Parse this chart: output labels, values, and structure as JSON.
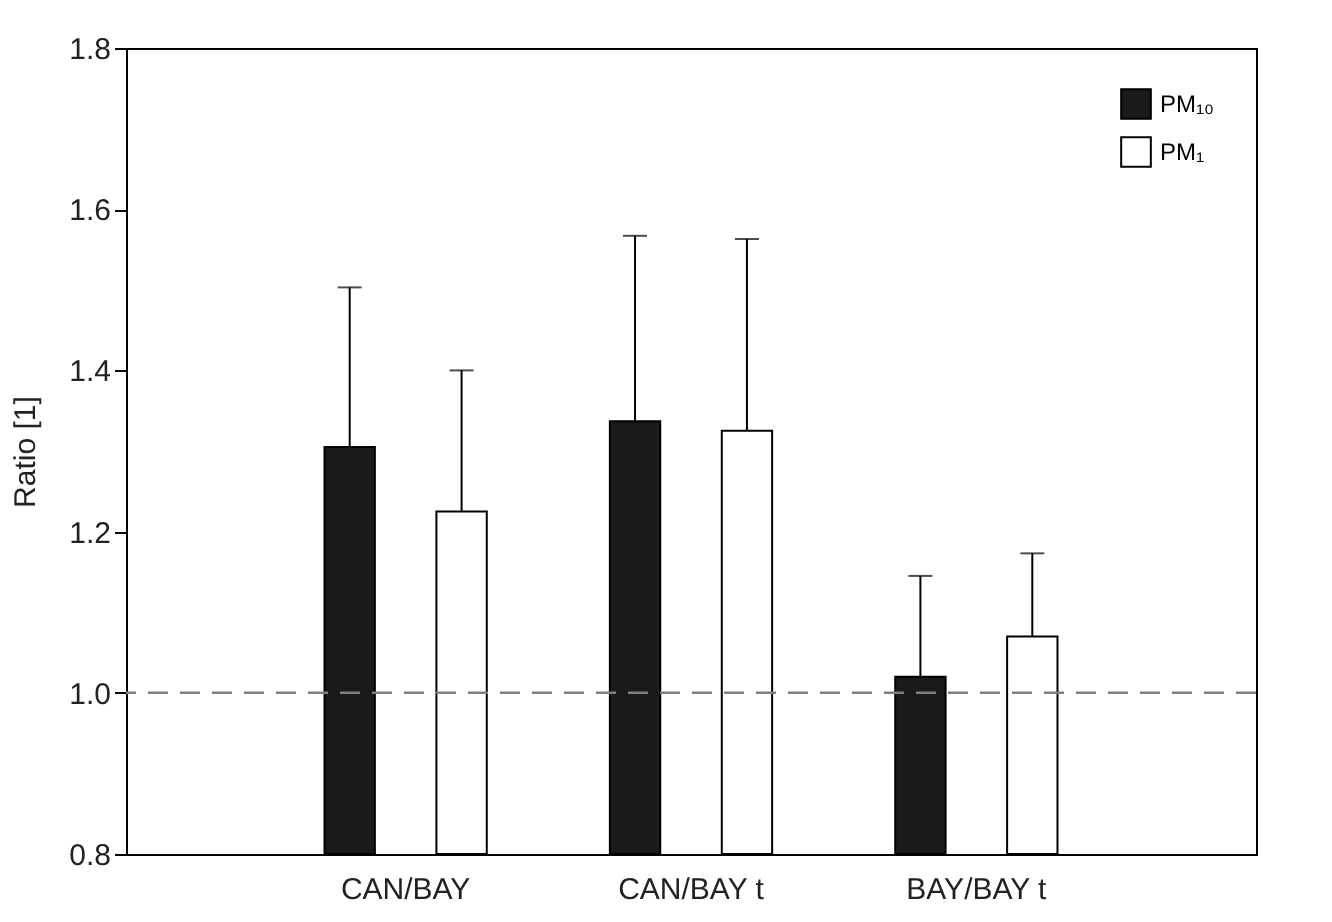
{
  "chart_data": {
    "type": "bar",
    "ylabel": "Ratio [1]",
    "categories": [
      "CAN/BAY",
      "CAN/BAY t",
      "BAY/BAY t"
    ],
    "series": [
      {
        "name": "PM₁₀",
        "color": "#1a1a1a",
        "values": [
          1.305,
          1.337,
          1.02
        ],
        "errors": [
          [
            1.305,
            1.503
          ],
          [
            1.337,
            1.567
          ],
          [
            1.02,
            1.145
          ]
        ]
      },
      {
        "name": "PM₁",
        "color": "#ffffff",
        "values": [
          1.225,
          1.325,
          1.07
        ],
        "errors": [
          [
            1.225,
            1.4
          ],
          [
            1.325,
            1.563
          ],
          [
            1.07,
            1.173
          ]
        ]
      }
    ],
    "ylim": [
      0.8,
      1.8
    ],
    "yticks": [
      {
        "value": 0.8,
        "label": "0.8"
      },
      {
        "value": 1.0,
        "label": "1.0"
      },
      {
        "value": 1.2,
        "label": "1.2"
      },
      {
        "value": 1.4,
        "label": "1.4"
      },
      {
        "value": 1.6,
        "label": "1.6"
      },
      {
        "value": 1.8,
        "label": "1.8"
      }
    ],
    "ref_lines": [
      {
        "axis": "y",
        "value": 1.0,
        "color": "#808080",
        "line_style": "dashed"
      }
    ],
    "legend": "top right",
    "grid": false
  }
}
